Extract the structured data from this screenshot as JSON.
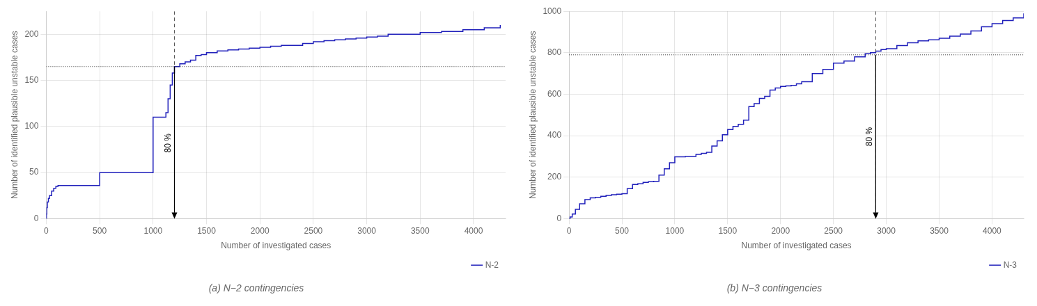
{
  "chart_data": [
    {
      "type": "line",
      "line_style": "step",
      "title": "(a) N−2 contingencies",
      "xlabel": "Number of investigated cases",
      "ylabel": "Number of identified plausible unstable cases",
      "xlim": [
        0,
        4300
      ],
      "ylim": [
        0,
        225
      ],
      "xticks": [
        0,
        500,
        1000,
        1500,
        2000,
        2500,
        3000,
        3500,
        4000
      ],
      "yticks": [
        0,
        50,
        100,
        150,
        200
      ],
      "grid": true,
      "legend": "lower right",
      "x": [
        0,
        2,
        5,
        10,
        20,
        30,
        50,
        70,
        90,
        110,
        130,
        150,
        170,
        200,
        230,
        260,
        290,
        320,
        350,
        380,
        400,
        420,
        440,
        460,
        480,
        500,
        520,
        540,
        560,
        580,
        600,
        620,
        640,
        660,
        680,
        700,
        720,
        740,
        760,
        780,
        800,
        850,
        900,
        950,
        1000,
        1050,
        1100,
        1120,
        1140,
        1160,
        1180,
        1200,
        1250,
        1300,
        1350,
        1400,
        1450,
        1500,
        1600,
        1700,
        1800,
        1900,
        2000,
        2100,
        2200,
        2300,
        2400,
        2500,
        2600,
        2700,
        2800,
        2900,
        3000,
        3100,
        3200,
        3300,
        3500,
        3700,
        3900,
        4100,
        4250
      ],
      "series": [
        {
          "name": "N-2",
          "color": "#2020bb",
          "values": [
            0,
            5,
            12,
            18,
            22,
            25,
            30,
            33,
            35,
            36,
            36,
            36,
            36,
            36,
            36,
            36,
            36,
            36,
            36,
            36,
            36,
            36,
            36,
            36,
            36,
            50,
            50,
            50,
            50,
            50,
            50,
            50,
            50,
            50,
            50,
            50,
            50,
            50,
            50,
            50,
            50,
            50,
            50,
            50,
            110,
            110,
            110,
            115,
            130,
            145,
            158,
            165,
            168,
            170,
            172,
            177,
            178,
            180,
            182,
            183,
            184,
            185,
            186,
            187,
            188,
            188,
            190,
            192,
            193,
            194,
            195,
            196,
            197,
            198,
            200,
            200,
            202,
            203,
            205,
            207,
            210
          ]
        }
      ],
      "hline": {
        "y": 165,
        "color": "#333333",
        "line_style": "dotted"
      },
      "vline": {
        "x": 1200,
        "color": "#555555",
        "line_style": "dashed"
      },
      "arrow": {
        "x": 1200,
        "y_from": 165,
        "y_to": 0,
        "color": "#000000"
      },
      "annotations": [
        {
          "text": "80 %",
          "x": 1145,
          "y": 82
        }
      ]
    },
    {
      "type": "line",
      "line_style": "step",
      "title": "(b) N−3 contingencies",
      "xlabel": "Number of investigated cases",
      "ylabel": "Number of identified plausible unstable cases",
      "xlim": [
        0,
        4300
      ],
      "ylim": [
        0,
        1000
      ],
      "xticks": [
        0,
        500,
        1000,
        1500,
        2000,
        2500,
        3000,
        3500,
        4000
      ],
      "yticks": [
        0,
        200,
        400,
        600,
        800,
        1000
      ],
      "grid": true,
      "legend": "lower right",
      "x": [
        0,
        10,
        30,
        60,
        100,
        150,
        200,
        250,
        300,
        350,
        400,
        450,
        500,
        550,
        600,
        650,
        700,
        750,
        800,
        850,
        900,
        950,
        1000,
        1050,
        1100,
        1150,
        1200,
        1250,
        1300,
        1350,
        1400,
        1450,
        1500,
        1550,
        1600,
        1650,
        1700,
        1750,
        1800,
        1850,
        1900,
        1950,
        2000,
        2050,
        2100,
        2150,
        2200,
        2300,
        2400,
        2500,
        2600,
        2700,
        2800,
        2850,
        2900,
        2950,
        3000,
        3100,
        3200,
        3300,
        3400,
        3500,
        3600,
        3700,
        3800,
        3900,
        4000,
        4100,
        4200,
        4300
      ],
      "series": [
        {
          "name": "N-3",
          "color": "#2020bb",
          "values": [
            0,
            8,
            22,
            45,
            72,
            92,
            100,
            103,
            108,
            112,
            115,
            118,
            120,
            145,
            165,
            168,
            175,
            178,
            180,
            210,
            240,
            270,
            298,
            298,
            300,
            300,
            310,
            315,
            320,
            350,
            375,
            405,
            430,
            445,
            455,
            475,
            540,
            555,
            580,
            590,
            620,
            630,
            638,
            640,
            643,
            650,
            660,
            700,
            720,
            750,
            760,
            780,
            795,
            800,
            808,
            815,
            820,
            835,
            848,
            857,
            862,
            870,
            880,
            890,
            905,
            925,
            940,
            955,
            968,
            990
          ]
        }
      ],
      "hline": {
        "y": 790,
        "color": "#333333",
        "line_style": "dotted"
      },
      "vline": {
        "x": 2900,
        "color": "#555555",
        "line_style": "dashed"
      },
      "arrow": {
        "x": 2900,
        "y_from": 790,
        "y_to": 0,
        "color": "#000000"
      },
      "annotations": [
        {
          "text": "80 %",
          "x": 2840,
          "y": 395
        }
      ]
    }
  ]
}
